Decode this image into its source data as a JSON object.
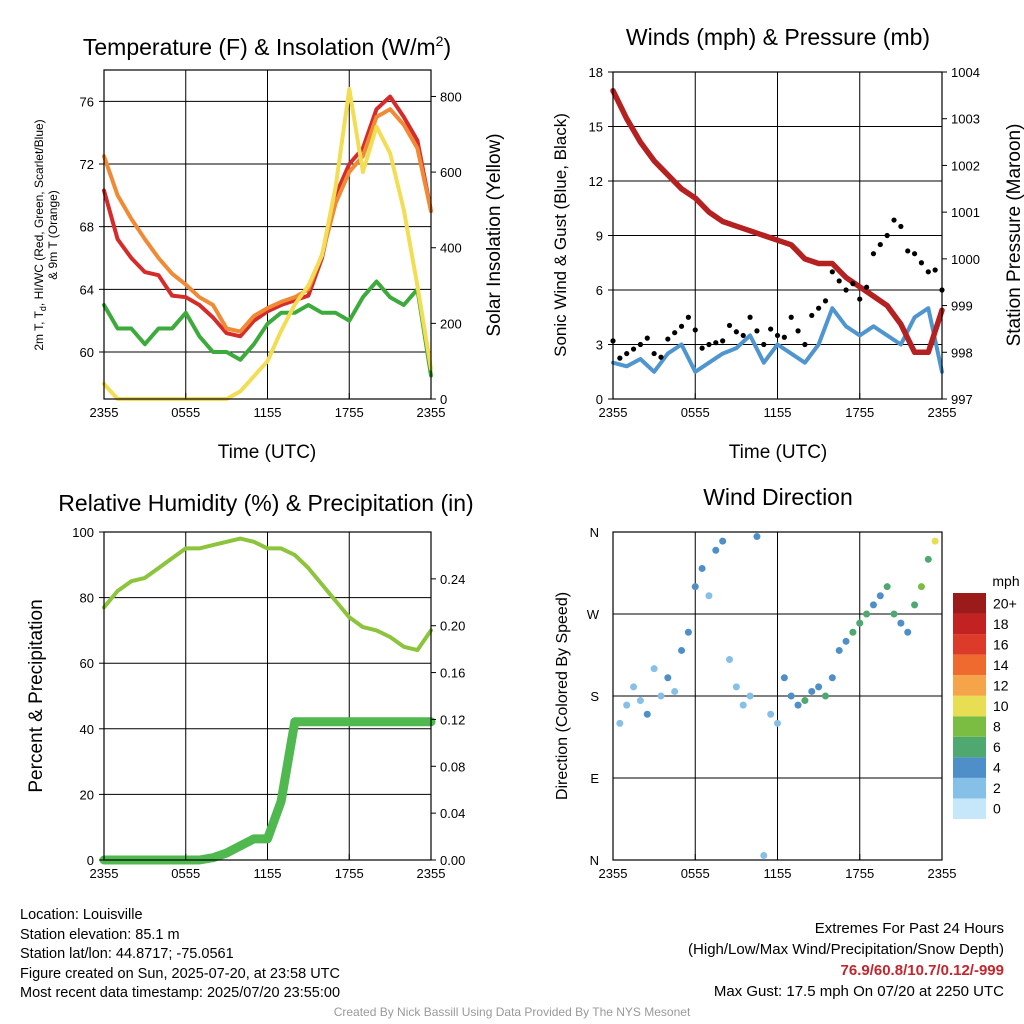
{
  "panels": {
    "temperature": {
      "title": "Temperature (F) & Insolation (W/m",
      "title_sup": "2",
      "title_end": ")",
      "ylabel_line1": "2m T, T",
      "ylabel_sub": "d",
      "ylabel_line1_end": ", HI/WC (Red, Green, Scarlet/Blue)",
      "ylabel_line2": "& 9m T (Orange)",
      "y2label": "Solar Insolation (Yellow)",
      "xlabel": "Time (UTC)"
    },
    "winds": {
      "title": "Winds (mph) & Pressure (mb)",
      "ylabel": "Sonic Wind & Gust (Blue, Black)",
      "y2label": "Station Pressure (Maroon)",
      "xlabel": "Time (UTC)"
    },
    "humidity": {
      "title": "Relative Humidity (%) & Precipitation (in)",
      "ylabel": "Percent & Precipitation"
    },
    "direction": {
      "title": "Wind Direction",
      "ylabel": "Direction (Colored By Speed)",
      "colorbar_title": "mph"
    }
  },
  "chart_data": [
    {
      "id": "temperature",
      "type": "line",
      "x": [
        0,
        1,
        2,
        3,
        4,
        5,
        6,
        7,
        8,
        9,
        10,
        11,
        12,
        13,
        14,
        15,
        16,
        17,
        18,
        19,
        20,
        21,
        22,
        23,
        24
      ],
      "xticks": [
        "2355",
        "0555",
        "1155",
        "1755",
        "2355"
      ],
      "xtick_hours": [
        0,
        6,
        12,
        18,
        24
      ],
      "ylim": [
        57,
        78
      ],
      "yticks": [
        60,
        64,
        68,
        72,
        76
      ],
      "y2lim": [
        0,
        870
      ],
      "y2ticks": [
        0,
        200,
        400,
        600,
        800
      ],
      "grid": true,
      "series": [
        {
          "color": "#d62b2b",
          "axis": "left",
          "values": [
            70.3,
            67.2,
            66.0,
            65.1,
            64.9,
            63.6,
            63.5,
            63.0,
            62.2,
            61.2,
            61.0,
            62.0,
            62.6,
            63.0,
            63.3,
            63.6,
            66.0,
            70.0,
            72.0,
            73.0,
            75.5,
            76.3,
            75.0,
            73.5,
            69.0
          ]
        },
        {
          "color": "#f08a35",
          "axis": "left",
          "values": [
            72.5,
            70.0,
            68.5,
            67.2,
            66.0,
            65.0,
            64.3,
            63.5,
            63.0,
            61.5,
            61.3,
            62.3,
            62.8,
            63.2,
            63.5,
            64.0,
            66.2,
            69.5,
            71.5,
            72.5,
            75.0,
            75.5,
            74.5,
            73.0,
            69.0
          ]
        },
        {
          "color": "#3cab3c",
          "axis": "left",
          "values": [
            63.0,
            61.5,
            61.5,
            60.5,
            61.5,
            61.5,
            62.5,
            61.0,
            60.0,
            60.0,
            59.5,
            60.5,
            61.8,
            62.5,
            62.5,
            63.0,
            62.5,
            62.5,
            62.0,
            63.5,
            64.5,
            63.5,
            63.0,
            64.0,
            58.5
          ]
        },
        {
          "color": "#f3dd55",
          "axis": "right",
          "values": [
            40,
            0,
            0,
            0,
            0,
            0,
            0,
            0,
            0,
            0,
            20,
            60,
            100,
            180,
            250,
            300,
            380,
            560,
            820,
            600,
            720,
            650,
            500,
            300,
            80
          ]
        }
      ]
    },
    {
      "id": "winds",
      "type": "line",
      "x": [
        0,
        1,
        2,
        3,
        4,
        5,
        6,
        7,
        8,
        9,
        10,
        11,
        12,
        13,
        14,
        15,
        16,
        17,
        18,
        19,
        20,
        21,
        22,
        23,
        24
      ],
      "xticks": [
        "2355",
        "0555",
        "1155",
        "1755",
        "2355"
      ],
      "xtick_hours": [
        0,
        6,
        12,
        18,
        24
      ],
      "ylim": [
        0,
        18
      ],
      "yticks": [
        0,
        3,
        6,
        9,
        12,
        15,
        18
      ],
      "y2lim": [
        997,
        1004
      ],
      "y2ticks": [
        997,
        998,
        999,
        1000,
        1001,
        1002,
        1003,
        1004
      ],
      "grid": true,
      "series": [
        {
          "color": "#4f95d0",
          "axis": "left",
          "values": [
            2.0,
            1.8,
            2.2,
            1.5,
            2.5,
            3.0,
            1.5,
            2.0,
            2.5,
            2.8,
            3.5,
            2.0,
            3.0,
            2.5,
            2.0,
            3.0,
            5.0,
            4.0,
            3.5,
            4.0,
            3.5,
            3.0,
            4.5,
            5.0,
            1.5
          ]
        },
        {
          "color": "#b52020",
          "axis": "right",
          "values": [
            1003.6,
            1003.0,
            1002.5,
            1002.1,
            1001.8,
            1001.5,
            1001.3,
            1001.0,
            1000.8,
            1000.7,
            1000.6,
            1000.5,
            1000.4,
            1000.3,
            1000.0,
            999.9,
            999.9,
            999.6,
            999.4,
            999.2,
            999.0,
            998.6,
            998.0,
            998.0,
            998.9
          ]
        },
        {
          "color": "#000000",
          "axis": "left",
          "type": "scatter",
          "values": [
            3.2,
            2.5,
            3.0,
            2.5,
            3.3,
            4.0,
            3.8,
            3.0,
            3.2,
            3.7,
            4.5,
            3.0,
            3.5,
            4.5,
            3.0,
            5.0,
            7.0,
            6.0,
            5.5,
            8.0,
            9.0,
            9.5,
            8.0,
            7.0,
            6.0
          ]
        }
      ]
    },
    {
      "id": "humidity",
      "type": "line",
      "x": [
        0,
        1,
        2,
        3,
        4,
        5,
        6,
        7,
        8,
        9,
        10,
        11,
        12,
        13,
        14,
        15,
        16,
        17,
        18,
        19,
        20,
        21,
        22,
        23,
        24
      ],
      "xticks": [
        "2355",
        "0555",
        "1155",
        "1755",
        "2355"
      ],
      "xtick_hours": [
        0,
        6,
        12,
        18,
        24
      ],
      "ylim": [
        0,
        100
      ],
      "yticks": [
        0,
        20,
        40,
        60,
        80,
        100
      ],
      "y2lim": [
        0,
        0.28
      ],
      "y2ticks": [
        "0.00",
        "0.04",
        "0.08",
        "0.12",
        "0.16",
        "0.20",
        "0.24"
      ],
      "grid": true,
      "series": [
        {
          "color": "#8cc43c",
          "axis": "left",
          "values": [
            77,
            82,
            85,
            86,
            89,
            92,
            95,
            95,
            96,
            97,
            98,
            97,
            95,
            95,
            93,
            89,
            84,
            79,
            74,
            71,
            70,
            68,
            65,
            64,
            70
          ]
        },
        {
          "color": "#4fb84f",
          "axis": "right",
          "values": [
            0,
            0,
            0,
            0,
            0,
            0,
            0,
            0,
            0.002,
            0.006,
            0.012,
            0.018,
            0.018,
            0.05,
            0.118,
            0.118,
            0.118,
            0.118,
            0.118,
            0.118,
            0.118,
            0.118,
            0.118,
            0.118,
            0.118
          ]
        }
      ]
    },
    {
      "id": "direction",
      "type": "scatter",
      "xticks": [
        "2355",
        "0555",
        "1155",
        "1755",
        "2355"
      ],
      "xtick_hours": [
        0,
        6,
        12,
        18,
        24
      ],
      "yticks": [
        "N",
        "E",
        "S",
        "W",
        "N"
      ],
      "ylim": [
        0,
        360
      ],
      "grid": true,
      "series": [
        {
          "name": "direction",
          "x": [
            0.5,
            1,
            1.5,
            2,
            2.5,
            3,
            3.5,
            4,
            4.5,
            5,
            5.5,
            6,
            6.5,
            7,
            7.5,
            8,
            8.5,
            9,
            9.5,
            10,
            10.5,
            11,
            11.5,
            12,
            12.5,
            13,
            13.5,
            14,
            14.5,
            15,
            15.5,
            16,
            16.5,
            17,
            17.5,
            18,
            18.5,
            19,
            19.5,
            20,
            20.5,
            21,
            21.5,
            22,
            22.5,
            23,
            23.5
          ],
          "y": [
            150,
            170,
            190,
            175,
            160,
            210,
            180,
            200,
            185,
            230,
            250,
            300,
            320,
            290,
            340,
            350,
            220,
            190,
            170,
            180,
            355,
            5,
            160,
            150,
            200,
            180,
            170,
            175,
            185,
            190,
            180,
            200,
            230,
            240,
            250,
            260,
            270,
            280,
            290,
            300,
            270,
            260,
            250,
            280,
            300,
            330,
            350
          ],
          "speed": [
            1,
            2,
            1,
            2,
            3,
            1,
            2,
            3,
            2,
            4,
            3,
            4,
            3,
            2,
            4,
            3,
            2,
            1,
            1,
            2,
            3,
            2,
            1,
            2,
            3,
            4,
            3,
            5,
            4,
            4,
            5,
            3,
            4,
            4,
            5,
            6,
            5,
            4,
            4,
            6,
            5,
            3,
            4,
            6,
            7,
            6,
            9
          ]
        }
      ],
      "colorbar": {
        "labels": [
          "0",
          "2",
          "4",
          "6",
          "8",
          "10",
          "12",
          "14",
          "16",
          "18",
          "20+"
        ],
        "colors": [
          "#c6e7f9",
          "#86bfe8",
          "#4f8fc9",
          "#4fa870",
          "#7abd42",
          "#e8de54",
          "#f6a44a",
          "#ef6a2e",
          "#dc3b2a",
          "#c32223",
          "#9b1b1b"
        ]
      }
    }
  ],
  "station_info": {
    "location": "Location: Louisville",
    "elevation": "Station elevation: 85.1 m",
    "latlon": "Station lat/lon: 44.8717; -75.0561",
    "created": "Figure created on Sun, 2025-07-20, at 23:58 UTC",
    "recent": "Most recent data timestamp: 2025/07/20 23:55:00"
  },
  "extremes": {
    "title": "Extremes For Past 24 Hours",
    "subtitle": "(High/Low/Max Wind/Precipitation/Snow Depth)",
    "values": "76.9/60.8/10.7/0.12/-999",
    "gust": "Max Gust: 17.5 mph On 07/20 at 2250 UTC",
    "values_color": "#c1272d"
  },
  "footer": "Created By Nick Bassill Using Data Provided By The NYS Mesonet"
}
